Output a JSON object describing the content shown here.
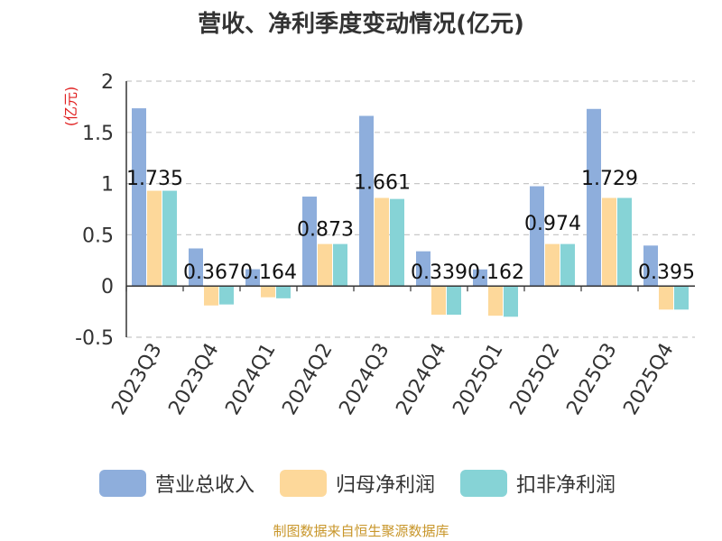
{
  "title": "营收、净利季度变动情况(亿元)",
  "footer": "制图数据来自恒生聚源数据库",
  "chart_data": {
    "type": "bar",
    "title": "营收、净利季度变动情况(亿元)",
    "ylabel": "(亿元)",
    "xlabel": "",
    "ylim": [
      -0.5,
      2
    ],
    "yticks": [
      -0.5,
      0,
      0.5,
      1,
      1.5,
      2
    ],
    "ytick_labels": [
      "-0.5",
      "0",
      "0.5",
      "1",
      "1.5",
      "2"
    ],
    "grid": true,
    "legend_position": "bottom",
    "categories": [
      "2023Q3",
      "2023Q4",
      "2024Q1",
      "2024Q2",
      "2024Q3",
      "2024Q4",
      "2025Q1",
      "2025Q2",
      "2025Q3",
      "2025Q4"
    ],
    "series": [
      {
        "name": "营业总收入",
        "color": "#8eaedc",
        "values": [
          1.735,
          0.367,
          0.164,
          0.873,
          1.661,
          0.339,
          0.162,
          0.974,
          1.729,
          0.395
        ]
      },
      {
        "name": "归母净利润",
        "color": "#fdd89a",
        "values": [
          0.93,
          -0.19,
          -0.11,
          0.41,
          0.86,
          -0.28,
          -0.29,
          0.41,
          0.86,
          -0.23
        ]
      },
      {
        "name": "扣非净利润",
        "color": "#86d3d6",
        "values": [
          0.93,
          -0.18,
          -0.12,
          0.41,
          0.85,
          -0.28,
          -0.3,
          0.41,
          0.86,
          -0.23
        ]
      }
    ],
    "data_labels": [
      "1.735",
      "0.367",
      "0.164",
      "0.873",
      "1.661",
      "0.339",
      "0.162",
      "0.974",
      "1.729",
      "0.395"
    ]
  }
}
